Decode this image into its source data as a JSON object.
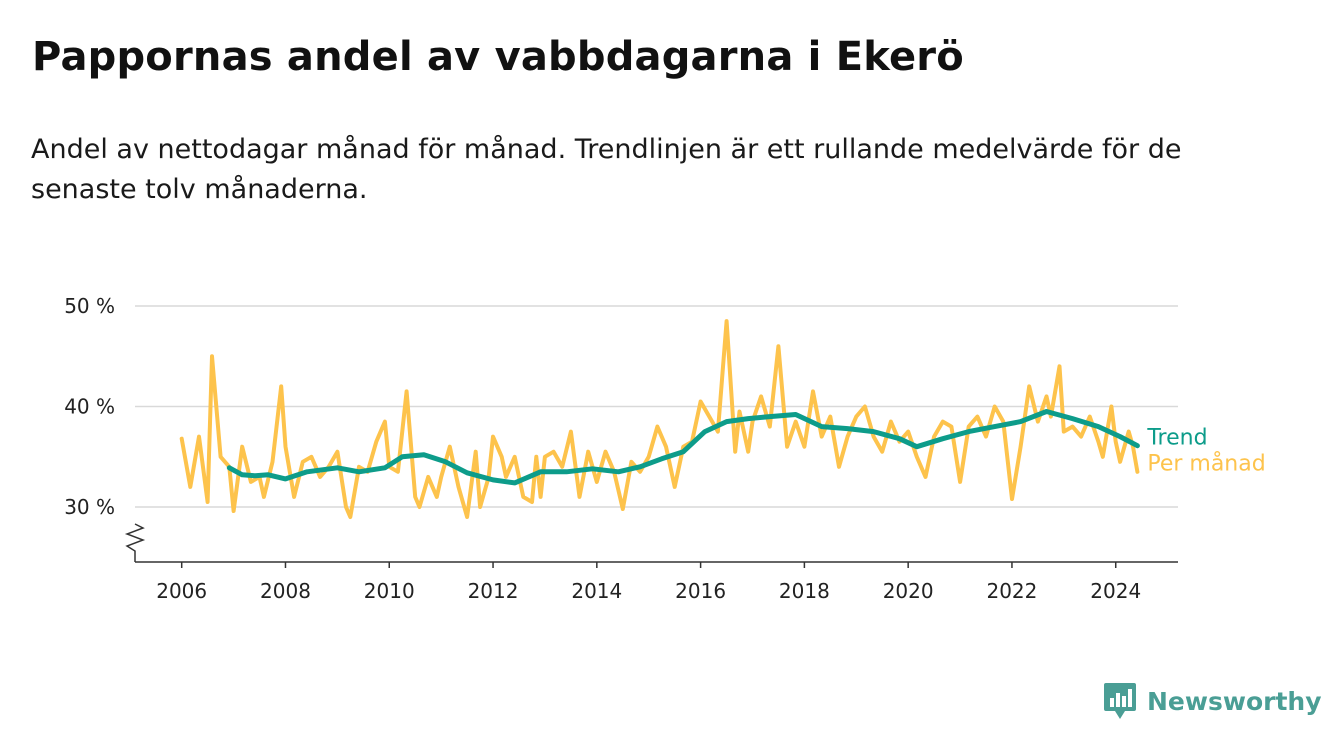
{
  "header": {
    "title": "Pappornas andel av vabbdagarna i Ekerö",
    "subtitle": "Andel av nettodagar månad för månad. Trendlinjen är ett rullande medelvärde för de senaste tolv månaderna."
  },
  "brand": {
    "name": "Newsworthy",
    "icon": "newsworthy-logo-icon",
    "color": "#4a9e95"
  },
  "colors": {
    "monthly": "#fdc34c",
    "trend": "#0d9c8a",
    "grid": "#d9d9d9",
    "axis": "#333333"
  },
  "chart_data": {
    "type": "line",
    "title": "Pappornas andel av vabbdagarna i Ekerö",
    "subtitle": "Andel av nettodagar månad för månad. Trendlinjen är ett rullande medelvärde för de senaste tolv månaderna.",
    "xlabel": "",
    "ylabel": "",
    "x_ticks": [
      2006,
      2008,
      2010,
      2012,
      2014,
      2016,
      2018,
      2020,
      2022,
      2024
    ],
    "x_tick_labels": [
      "2006",
      "2008",
      "2010",
      "2012",
      "2014",
      "2016",
      "2018",
      "2020",
      "2022",
      "2024"
    ],
    "y_ticks": [
      30,
      40,
      50
    ],
    "y_tick_labels": [
      "30 %",
      "40 %",
      "50 %"
    ],
    "ylim": [
      24.5,
      51
    ],
    "xlim": [
      2005.1,
      2025.2
    ],
    "y_axis_break": true,
    "grid": true,
    "legend_position": "right-end-of-lines",
    "series": [
      {
        "name": "Per månad",
        "color": "#fdc34c",
        "points": [
          [
            "2006-01",
            36.8
          ],
          [
            "2006-03",
            32.0
          ],
          [
            "2006-05",
            37.0
          ],
          [
            "2006-07",
            30.5
          ],
          [
            "2006-08",
            45.0
          ],
          [
            "2006-10",
            35.0
          ],
          [
            "2006-12",
            34.0
          ],
          [
            "2007-01",
            29.6
          ],
          [
            "2007-03",
            36.0
          ],
          [
            "2007-05",
            32.5
          ],
          [
            "2007-07",
            33.0
          ],
          [
            "2007-08",
            31.0
          ],
          [
            "2007-10",
            34.5
          ],
          [
            "2007-12",
            42.0
          ],
          [
            "2008-01",
            36.0
          ],
          [
            "2008-03",
            31.0
          ],
          [
            "2008-05",
            34.5
          ],
          [
            "2008-07",
            35.0
          ],
          [
            "2008-09",
            33.0
          ],
          [
            "2008-11",
            34.0
          ],
          [
            "2009-01",
            35.5
          ],
          [
            "2009-03",
            30.0
          ],
          [
            "2009-04",
            29.0
          ],
          [
            "2009-06",
            34.0
          ],
          [
            "2009-08",
            33.5
          ],
          [
            "2009-10",
            36.5
          ],
          [
            "2009-12",
            38.5
          ],
          [
            "2010-01",
            34.0
          ],
          [
            "2010-03",
            33.5
          ],
          [
            "2010-05",
            41.5
          ],
          [
            "2010-07",
            31.0
          ],
          [
            "2010-08",
            30.0
          ],
          [
            "2010-10",
            33.0
          ],
          [
            "2010-12",
            31.0
          ],
          [
            "2011-01",
            33.0
          ],
          [
            "2011-03",
            36.0
          ],
          [
            "2011-05",
            32.0
          ],
          [
            "2011-07",
            29.0
          ],
          [
            "2011-09",
            35.5
          ],
          [
            "2011-10",
            30.0
          ],
          [
            "2011-12",
            33.0
          ],
          [
            "2012-01",
            37.0
          ],
          [
            "2012-03",
            35.0
          ],
          [
            "2012-04",
            33.0
          ],
          [
            "2012-06",
            35.0
          ],
          [
            "2012-08",
            31.0
          ],
          [
            "2012-10",
            30.5
          ],
          [
            "2012-11",
            35.0
          ],
          [
            "2012-12",
            31.0
          ],
          [
            "2013-01",
            35.0
          ],
          [
            "2013-03",
            35.5
          ],
          [
            "2013-05",
            34.0
          ],
          [
            "2013-07",
            37.5
          ],
          [
            "2013-09",
            31.0
          ],
          [
            "2013-11",
            35.5
          ],
          [
            "2014-01",
            32.5
          ],
          [
            "2014-03",
            35.5
          ],
          [
            "2014-05",
            33.5
          ],
          [
            "2014-07",
            29.8
          ],
          [
            "2014-09",
            34.5
          ],
          [
            "2014-11",
            33.5
          ],
          [
            "2015-01",
            35.0
          ],
          [
            "2015-03",
            38.0
          ],
          [
            "2015-05",
            36.0
          ],
          [
            "2015-07",
            32.0
          ],
          [
            "2015-09",
            36.0
          ],
          [
            "2015-11",
            36.5
          ],
          [
            "2016-01",
            40.5
          ],
          [
            "2016-03",
            39.0
          ],
          [
            "2016-05",
            37.5
          ],
          [
            "2016-07",
            48.5
          ],
          [
            "2016-09",
            35.5
          ],
          [
            "2016-10",
            39.5
          ],
          [
            "2016-12",
            35.5
          ],
          [
            "2017-01",
            38.5
          ],
          [
            "2017-03",
            41.0
          ],
          [
            "2017-05",
            38.0
          ],
          [
            "2017-07",
            46.0
          ],
          [
            "2017-09",
            36.0
          ],
          [
            "2017-11",
            38.5
          ],
          [
            "2018-01",
            36.0
          ],
          [
            "2018-03",
            41.5
          ],
          [
            "2018-05",
            37.0
          ],
          [
            "2018-07",
            39.0
          ],
          [
            "2018-09",
            34.0
          ],
          [
            "2018-11",
            37.0
          ],
          [
            "2019-01",
            39.0
          ],
          [
            "2019-03",
            40.0
          ],
          [
            "2019-05",
            37.0
          ],
          [
            "2019-07",
            35.5
          ],
          [
            "2019-09",
            38.5
          ],
          [
            "2019-11",
            36.5
          ],
          [
            "2020-01",
            37.5
          ],
          [
            "2020-03",
            35.0
          ],
          [
            "2020-05",
            33.0
          ],
          [
            "2020-07",
            37.0
          ],
          [
            "2020-09",
            38.5
          ],
          [
            "2020-11",
            38.0
          ],
          [
            "2021-01",
            32.5
          ],
          [
            "2021-03",
            38.0
          ],
          [
            "2021-05",
            39.0
          ],
          [
            "2021-07",
            37.0
          ],
          [
            "2021-09",
            40.0
          ],
          [
            "2021-11",
            38.5
          ],
          [
            "2022-01",
            30.8
          ],
          [
            "2022-03",
            36.0
          ],
          [
            "2022-05",
            42.0
          ],
          [
            "2022-07",
            38.5
          ],
          [
            "2022-09",
            41.0
          ],
          [
            "2022-10",
            39.0
          ],
          [
            "2022-12",
            44.0
          ],
          [
            "2023-01",
            37.5
          ],
          [
            "2023-03",
            38.0
          ],
          [
            "2023-05",
            37.0
          ],
          [
            "2023-07",
            39.0
          ],
          [
            "2023-09",
            36.5
          ],
          [
            "2023-10",
            35.0
          ],
          [
            "2023-12",
            40.0
          ],
          [
            "2024-01",
            36.5
          ],
          [
            "2024-02",
            34.5
          ],
          [
            "2024-04",
            37.5
          ],
          [
            "2024-05",
            36.0
          ],
          [
            "2024-06",
            33.5
          ]
        ]
      },
      {
        "name": "Trend",
        "color": "#0d9c8a",
        "points": [
          [
            "2006-12",
            33.9
          ],
          [
            "2007-03",
            33.2
          ],
          [
            "2007-06",
            33.1
          ],
          [
            "2007-09",
            33.2
          ],
          [
            "2008-01",
            32.8
          ],
          [
            "2008-06",
            33.5
          ],
          [
            "2009-01",
            33.9
          ],
          [
            "2009-06",
            33.5
          ],
          [
            "2009-12",
            33.9
          ],
          [
            "2010-04",
            35.0
          ],
          [
            "2010-09",
            35.2
          ],
          [
            "2011-02",
            34.5
          ],
          [
            "2011-07",
            33.4
          ],
          [
            "2012-01",
            32.7
          ],
          [
            "2012-06",
            32.4
          ],
          [
            "2012-12",
            33.5
          ],
          [
            "2013-06",
            33.5
          ],
          [
            "2013-12",
            33.8
          ],
          [
            "2014-06",
            33.5
          ],
          [
            "2014-11",
            34.0
          ],
          [
            "2015-04",
            34.8
          ],
          [
            "2015-09",
            35.5
          ],
          [
            "2016-02",
            37.5
          ],
          [
            "2016-07",
            38.5
          ],
          [
            "2016-12",
            38.8
          ],
          [
            "2017-05",
            39.0
          ],
          [
            "2017-11",
            39.2
          ],
          [
            "2018-05",
            38.0
          ],
          [
            "2018-11",
            37.8
          ],
          [
            "2019-05",
            37.5
          ],
          [
            "2019-11",
            36.8
          ],
          [
            "2020-03",
            36.0
          ],
          [
            "2020-09",
            36.8
          ],
          [
            "2021-03",
            37.5
          ],
          [
            "2021-09",
            38.0
          ],
          [
            "2022-03",
            38.5
          ],
          [
            "2022-09",
            39.5
          ],
          [
            "2023-03",
            38.8
          ],
          [
            "2023-09",
            38.0
          ],
          [
            "2024-02",
            37.0
          ],
          [
            "2024-06",
            36.1
          ]
        ]
      }
    ]
  }
}
